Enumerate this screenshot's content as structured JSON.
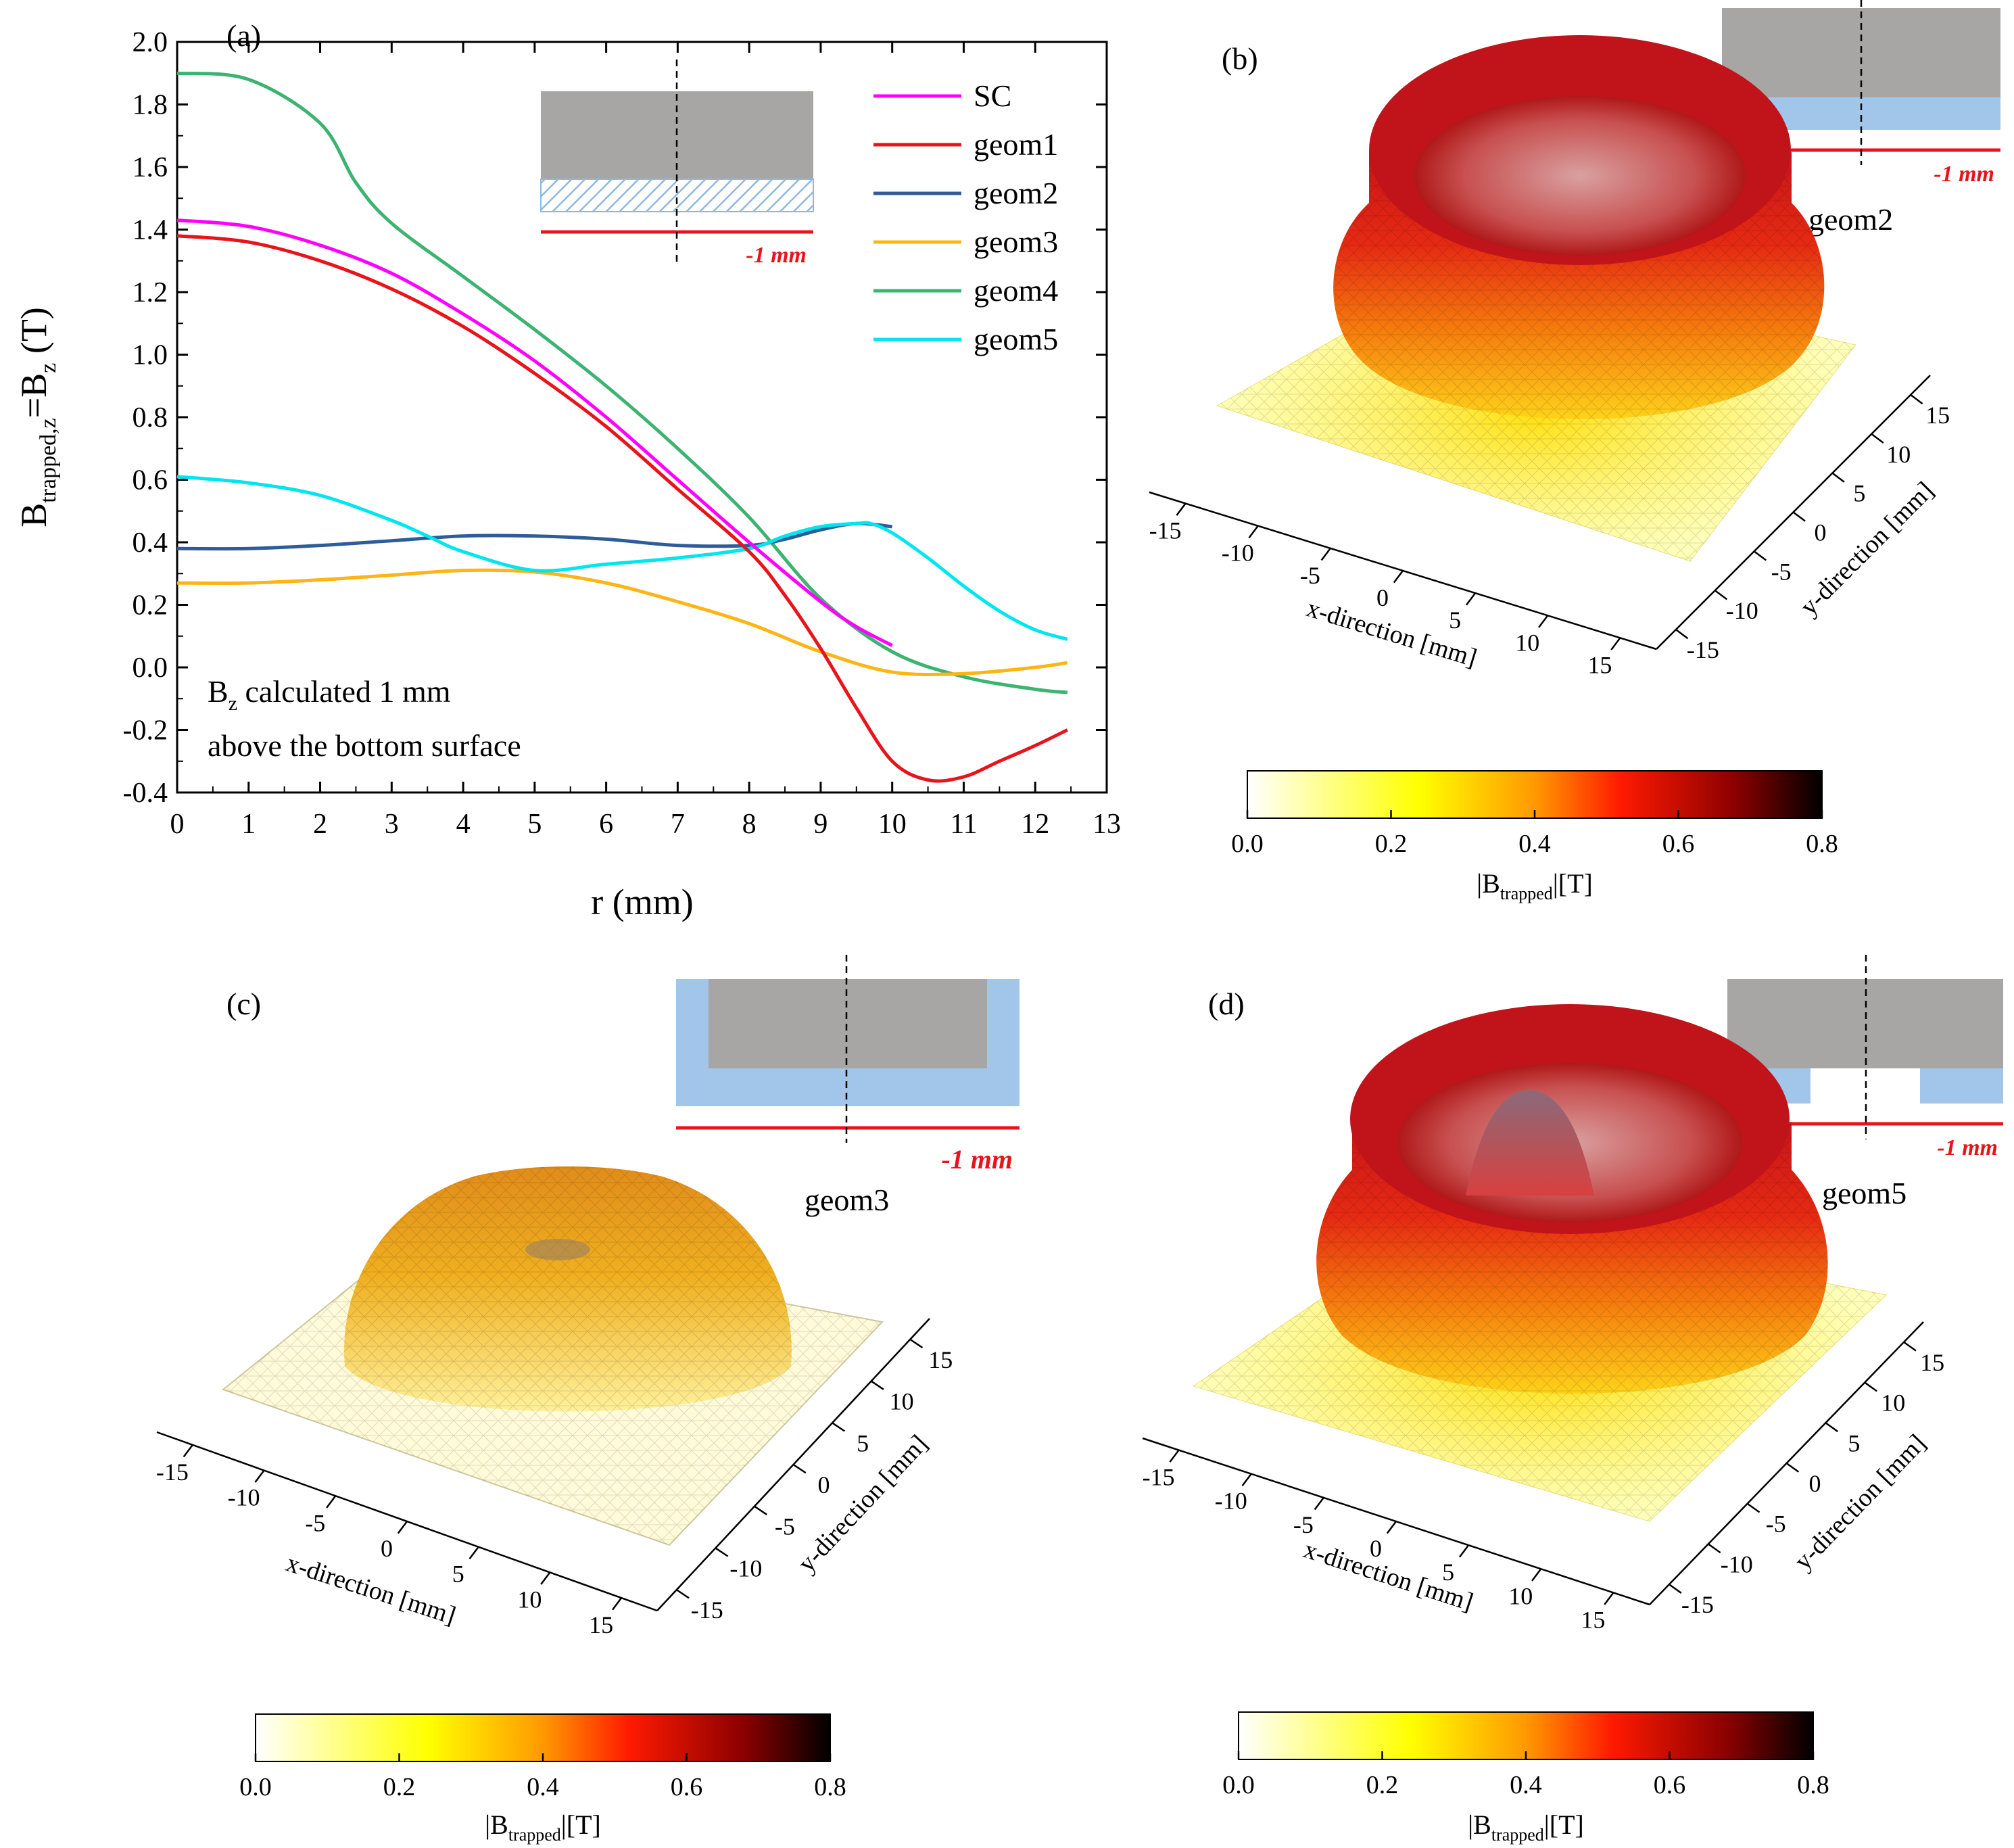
{
  "chart_data": [
    {
      "panel": "(a)",
      "type": "line",
      "xlabel": "r (mm)",
      "ylabel_main": "B",
      "ylabel_sub1": "trapped,z",
      "ylabel_mid": "=B",
      "ylabel_sub2": "z",
      "ylabel_unit": " (T)",
      "xlim": [
        0,
        13
      ],
      "ylim": [
        -0.4,
        2.0
      ],
      "xticks": [
        "0",
        "1",
        "2",
        "3",
        "4",
        "5",
        "6",
        "7",
        "8",
        "9",
        "10",
        "11",
        "12",
        "13"
      ],
      "yticks": [
        "-0.4",
        "-0.2",
        "0.0",
        "0.2",
        "0.4",
        "0.6",
        "0.8",
        "1.0",
        "1.2",
        "1.4",
        "1.6",
        "1.8",
        "2.0"
      ],
      "annotation_line1_main": "B",
      "annotation_line1_sub": "z",
      "annotation_line1_rest": " calculated 1 mm",
      "annotation_line2": "above the bottom surface",
      "inset_label": "-1 mm",
      "series": [
        {
          "name": "SC",
          "color": "#ff00ff",
          "x": [
            0,
            1,
            2,
            3,
            4,
            5,
            6,
            7,
            8,
            9,
            9.5,
            10
          ],
          "y": [
            1.43,
            1.41,
            1.35,
            1.26,
            1.13,
            0.98,
            0.8,
            0.6,
            0.4,
            0.21,
            0.13,
            0.07
          ]
        },
        {
          "name": "geom1",
          "color": "#e8141c",
          "x": [
            0,
            1,
            2,
            3,
            4,
            5,
            6,
            7,
            8,
            8.5,
            9,
            9.5,
            10,
            10.5,
            11,
            11.5,
            12,
            12.45
          ],
          "y": [
            1.38,
            1.36,
            1.3,
            1.21,
            1.09,
            0.94,
            0.77,
            0.57,
            0.37,
            0.23,
            0.06,
            -0.13,
            -0.3,
            -0.36,
            -0.35,
            -0.3,
            -0.25,
            -0.2
          ]
        },
        {
          "name": "geom2",
          "color": "#2e5c9a",
          "x": [
            0,
            1,
            2,
            3,
            4,
            5,
            6,
            7,
            8,
            8.5,
            9,
            9.5,
            10
          ],
          "y": [
            0.38,
            0.38,
            0.39,
            0.405,
            0.42,
            0.42,
            0.41,
            0.39,
            0.39,
            0.41,
            0.44,
            0.46,
            0.45
          ]
        },
        {
          "name": "geom3",
          "color": "#fdb515",
          "x": [
            0,
            1,
            2,
            3,
            4,
            5,
            6,
            7,
            8,
            9,
            10,
            11,
            12,
            12.45
          ],
          "y": [
            0.27,
            0.27,
            0.28,
            0.295,
            0.31,
            0.305,
            0.27,
            0.21,
            0.14,
            0.05,
            -0.015,
            -0.02,
            0.0,
            0.015
          ]
        },
        {
          "name": "geom4",
          "color": "#3cb371",
          "x": [
            0,
            1,
            2,
            2.5,
            3,
            4,
            5,
            6,
            7,
            8,
            9,
            10,
            11,
            12,
            12.45
          ],
          "y": [
            1.9,
            1.88,
            1.74,
            1.55,
            1.42,
            1.25,
            1.08,
            0.9,
            0.7,
            0.48,
            0.22,
            0.05,
            -0.03,
            -0.07,
            -0.08
          ]
        },
        {
          "name": "geom5",
          "color": "#00e5ee",
          "x": [
            0,
            1,
            2,
            3,
            3.5,
            4,
            5,
            6,
            7,
            8,
            8.5,
            9,
            9.5,
            9.7,
            10,
            10.5,
            11,
            11.5,
            12,
            12.45
          ],
          "y": [
            0.61,
            0.59,
            0.55,
            0.47,
            0.42,
            0.37,
            0.31,
            0.33,
            0.35,
            0.38,
            0.42,
            0.45,
            0.46,
            0.46,
            0.43,
            0.35,
            0.26,
            0.18,
            0.12,
            0.09
          ]
        }
      ]
    },
    {
      "panel": "(b)",
      "type": "surface3d",
      "geometry": "geom2",
      "inset_label": "-1 mm",
      "xlabel": "x-direction [mm]",
      "ylabel": "y-direction [mm]",
      "xticks": [
        "-15",
        "-10",
        "-5",
        "0",
        "5",
        "10",
        "15"
      ],
      "yticks": [
        "-15",
        "-10",
        "-5",
        "0",
        "5",
        "10",
        "15"
      ],
      "colorbar_label_main": "|B",
      "colorbar_label_sub": "trapped",
      "colorbar_label_rest": "|[T]",
      "colorbar_ticks": [
        "0.0",
        "0.2",
        "0.4",
        "0.6",
        "0.8"
      ],
      "clim": [
        0,
        0.8
      ]
    },
    {
      "panel": "(c)",
      "type": "surface3d",
      "geometry": "geom3",
      "inset_label": "-1 mm",
      "xlabel": "x-direction [mm]",
      "ylabel": "y-direction [mm]",
      "xticks": [
        "-15",
        "-10",
        "-5",
        "0",
        "5",
        "10",
        "15"
      ],
      "yticks": [
        "-15",
        "-10",
        "-5",
        "0",
        "5",
        "10",
        "15"
      ],
      "colorbar_label_main": "|B",
      "colorbar_label_sub": "trapped",
      "colorbar_label_rest": "|[T]",
      "colorbar_ticks": [
        "0.0",
        "0.2",
        "0.4",
        "0.6",
        "0.8"
      ],
      "clim": [
        0,
        0.8
      ]
    },
    {
      "panel": "(d)",
      "type": "surface3d",
      "geometry": "geom5",
      "inset_label": "-1 mm",
      "xlabel": "x-direction [mm]",
      "ylabel": "y-direction [mm]",
      "xticks": [
        "-15",
        "-10",
        "-5",
        "0",
        "5",
        "10",
        "15"
      ],
      "yticks": [
        "-15",
        "-10",
        "-5",
        "0",
        "5",
        "10",
        "15"
      ],
      "colorbar_label_main": "|B",
      "colorbar_label_sub": "trapped",
      "colorbar_label_rest": "|[T]",
      "colorbar_ticks": [
        "0.0",
        "0.2",
        "0.4",
        "0.6",
        "0.8"
      ],
      "clim": [
        0,
        0.8
      ]
    }
  ]
}
